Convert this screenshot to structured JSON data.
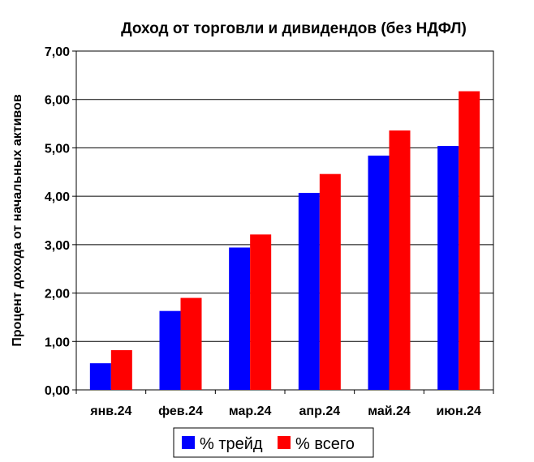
{
  "chart_data": {
    "type": "bar",
    "title": "Доход от торговли и дивидендов (без НДФЛ)",
    "xlabel": "",
    "ylabel": "Процент дохода от начальных активов",
    "categories": [
      "янв.24",
      "фев.24",
      "мар.24",
      "апр.24",
      "май.24",
      "июн.24"
    ],
    "series": [
      {
        "name": "% трейд",
        "color": "#0000ff",
        "values": [
          0.55,
          1.63,
          2.94,
          4.07,
          4.84,
          5.04
        ]
      },
      {
        "name": "% всего",
        "color": "#ff0000",
        "values": [
          0.82,
          1.9,
          3.21,
          4.46,
          5.36,
          6.17
        ]
      }
    ],
    "ylim": [
      0,
      7
    ],
    "yticks": [
      "0,00",
      "1,00",
      "2,00",
      "3,00",
      "4,00",
      "5,00",
      "6,00",
      "7,00"
    ],
    "grid": true,
    "legend": "bottom"
  }
}
